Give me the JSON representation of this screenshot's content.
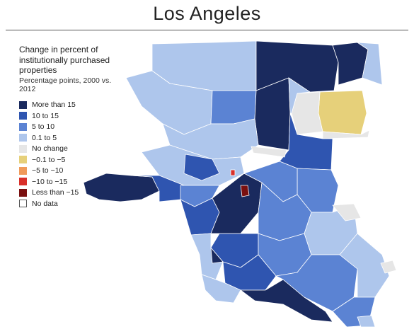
{
  "title": "Los Angeles",
  "legend": {
    "title": "Change in percent of institutionally purchased properties",
    "subtitle": "Percentage points, 2000 vs. 2012",
    "items": [
      {
        "label": "More than 15",
        "color": "#1a2a5e"
      },
      {
        "label": "10 to 15",
        "color": "#2f55b0"
      },
      {
        "label": "5 to 10",
        "color": "#5b83d3"
      },
      {
        "label": "0.1 to 5",
        "color": "#aec6ec"
      },
      {
        "label": "No change",
        "color": "#e6e6e6"
      },
      {
        "label": "−0.1 to −5",
        "color": "#e6d07a"
      },
      {
        "label": "−5 to −10",
        "color": "#f09a5a"
      },
      {
        "label": "−10 to −15",
        "color": "#d9302a"
      },
      {
        "label": "Less than −15",
        "color": "#7a1010"
      },
      {
        "label": "No data",
        "color": "#ffffff"
      }
    ]
  },
  "colors": {
    "more_than_15": "#1a2a5e",
    "ten_to_15": "#2f55b0",
    "five_to_10": "#5b83d3",
    "point1_to_5": "#aec6ec",
    "no_change": "#e6e6e6",
    "neg_small": "#e6d07a",
    "neg_large": "#7a1010",
    "tract_border": "#ffffff"
  }
}
